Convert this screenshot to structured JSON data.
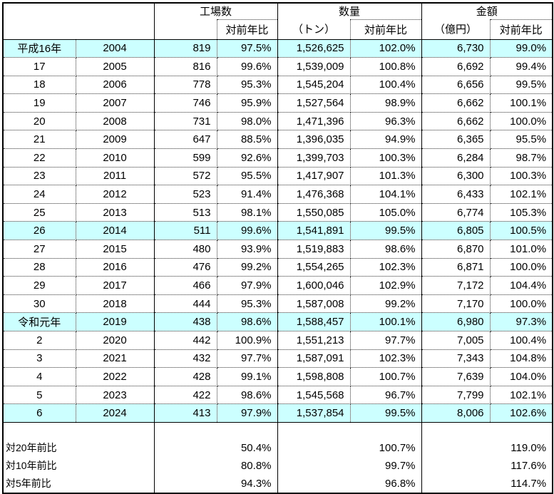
{
  "highlight_color": "#CCFFFF",
  "header": {
    "group_factories": "工場数",
    "group_quantity": "数量",
    "group_value": "金額",
    "sub_yoy": "対前年比",
    "sub_tons": "（トン）",
    "sub_okuyen": "（億円）"
  },
  "rows": [
    {
      "era": "平成16年",
      "year": "2004",
      "factories": "819",
      "factories_yoy": "97.5%",
      "tons": "1,526,625",
      "tons_yoy": "102.0%",
      "value": "6,730",
      "value_yoy": "99.0%",
      "highlight": true
    },
    {
      "era": "17",
      "year": "2005",
      "factories": "816",
      "factories_yoy": "99.6%",
      "tons": "1,539,009",
      "tons_yoy": "100.8%",
      "value": "6,692",
      "value_yoy": "99.4%",
      "highlight": false
    },
    {
      "era": "18",
      "year": "2006",
      "factories": "778",
      "factories_yoy": "95.3%",
      "tons": "1,545,204",
      "tons_yoy": "100.4%",
      "value": "6,656",
      "value_yoy": "99.5%",
      "highlight": false
    },
    {
      "era": "19",
      "year": "2007",
      "factories": "746",
      "factories_yoy": "95.9%",
      "tons": "1,527,564",
      "tons_yoy": "98.9%",
      "value": "6,662",
      "value_yoy": "100.1%",
      "highlight": false
    },
    {
      "era": "20",
      "year": "2008",
      "factories": "731",
      "factories_yoy": "98.0%",
      "tons": "1,471,396",
      "tons_yoy": "96.3%",
      "value": "6,662",
      "value_yoy": "100.0%",
      "highlight": false
    },
    {
      "era": "21",
      "year": "2009",
      "factories": "647",
      "factories_yoy": "88.5%",
      "tons": "1,396,035",
      "tons_yoy": "94.9%",
      "value": "6,365",
      "value_yoy": "95.5%",
      "highlight": false
    },
    {
      "era": "22",
      "year": "2010",
      "factories": "599",
      "factories_yoy": "92.6%",
      "tons": "1,399,703",
      "tons_yoy": "100.3%",
      "value": "6,284",
      "value_yoy": "98.7%",
      "highlight": false
    },
    {
      "era": "23",
      "year": "2011",
      "factories": "572",
      "factories_yoy": "95.5%",
      "tons": "1,417,907",
      "tons_yoy": "101.3%",
      "value": "6,300",
      "value_yoy": "100.3%",
      "highlight": false
    },
    {
      "era": "24",
      "year": "2012",
      "factories": "523",
      "factories_yoy": "91.4%",
      "tons": "1,476,368",
      "tons_yoy": "104.1%",
      "value": "6,433",
      "value_yoy": "102.1%",
      "highlight": false
    },
    {
      "era": "25",
      "year": "2013",
      "factories": "513",
      "factories_yoy": "98.1%",
      "tons": "1,550,085",
      "tons_yoy": "105.0%",
      "value": "6,774",
      "value_yoy": "105.3%",
      "highlight": false
    },
    {
      "era": "26",
      "year": "2014",
      "factories": "511",
      "factories_yoy": "99.6%",
      "tons": "1,541,891",
      "tons_yoy": "99.5%",
      "value": "6,805",
      "value_yoy": "100.5%",
      "highlight": true
    },
    {
      "era": "27",
      "year": "2015",
      "factories": "480",
      "factories_yoy": "93.9%",
      "tons": "1,519,883",
      "tons_yoy": "98.6%",
      "value": "6,870",
      "value_yoy": "101.0%",
      "highlight": false
    },
    {
      "era": "28",
      "year": "2016",
      "factories": "476",
      "factories_yoy": "99.2%",
      "tons": "1,554,265",
      "tons_yoy": "102.3%",
      "value": "6,871",
      "value_yoy": "100.0%",
      "highlight": false
    },
    {
      "era": "29",
      "year": "2017",
      "factories": "466",
      "factories_yoy": "97.9%",
      "tons": "1,600,046",
      "tons_yoy": "102.9%",
      "value": "7,172",
      "value_yoy": "104.4%",
      "highlight": false
    },
    {
      "era": "30",
      "year": "2018",
      "factories": "444",
      "factories_yoy": "95.3%",
      "tons": "1,587,008",
      "tons_yoy": "99.2%",
      "value": "7,170",
      "value_yoy": "100.0%",
      "highlight": false
    },
    {
      "era": "令和元年",
      "year": "2019",
      "factories": "438",
      "factories_yoy": "98.6%",
      "tons": "1,588,457",
      "tons_yoy": "100.1%",
      "value": "6,980",
      "value_yoy": "97.3%",
      "highlight": true
    },
    {
      "era": "2",
      "year": "2020",
      "factories": "442",
      "factories_yoy": "100.9%",
      "tons": "1,551,213",
      "tons_yoy": "97.7%",
      "value": "7,005",
      "value_yoy": "100.4%",
      "highlight": false
    },
    {
      "era": "3",
      "year": "2021",
      "factories": "432",
      "factories_yoy": "97.7%",
      "tons": "1,587,091",
      "tons_yoy": "102.3%",
      "value": "7,343",
      "value_yoy": "104.8%",
      "highlight": false
    },
    {
      "era": "4",
      "year": "2022",
      "factories": "428",
      "factories_yoy": "99.1%",
      "tons": "1,598,808",
      "tons_yoy": "100.7%",
      "value": "7,639",
      "value_yoy": "104.0%",
      "highlight": false
    },
    {
      "era": "5",
      "year": "2023",
      "factories": "422",
      "factories_yoy": "98.6%",
      "tons": "1,545,568",
      "tons_yoy": "96.7%",
      "value": "7,799",
      "value_yoy": "102.1%",
      "highlight": false
    },
    {
      "era": "6",
      "year": "2024",
      "factories": "413",
      "factories_yoy": "97.9%",
      "tons": "1,537,854",
      "tons_yoy": "99.5%",
      "value": "8,006",
      "value_yoy": "102.6%",
      "highlight": true
    }
  ],
  "summary": [
    {
      "label": "対20年前比",
      "factories_yoy": "50.4%",
      "tons_yoy": "100.7%",
      "value_yoy": "119.0%"
    },
    {
      "label": "対10年前比",
      "factories_yoy": "80.8%",
      "tons_yoy": "99.7%",
      "value_yoy": "117.6%"
    },
    {
      "label": "対5年前比",
      "factories_yoy": "94.3%",
      "tons_yoy": "96.8%",
      "value_yoy": "114.7%"
    }
  ]
}
